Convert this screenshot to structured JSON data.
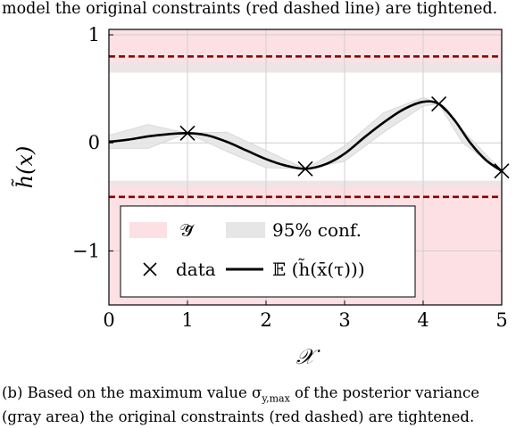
{
  "top_caption": "model the original constraints (red dashed line) are tightened.",
  "bottom_caption": {
    "line1": "(b) Based on the maximum value σ",
    "line1_sub": "y,max",
    "line1_rest": " of the posterior variance",
    "line2": "(gray area) the original constraints (red dashed) are tightened."
  },
  "chart_data": {
    "type": "line",
    "xlabel": "𝒳",
    "ylabel": "h̃(x)",
    "xlim": [
      0,
      5
    ],
    "ylim": [
      -1.5,
      1.05
    ],
    "xticks": [
      "0",
      "1",
      "2",
      "3",
      "4",
      "5"
    ],
    "yticks": [
      "1",
      "0",
      "−1"
    ],
    "grid": true,
    "constraints": {
      "upper": 0.8,
      "lower": -0.5
    },
    "tightened_region": {
      "upper_start": 0.65,
      "lower_end": -0.35
    },
    "series": [
      {
        "role": "mean",
        "x": [
          0,
          0.25,
          0.5,
          0.75,
          1.0,
          1.25,
          1.5,
          1.75,
          2.0,
          2.25,
          2.5,
          2.75,
          3.0,
          3.25,
          3.5,
          3.75,
          4.0,
          4.2,
          4.4,
          4.6,
          4.8,
          5.0
        ],
        "y": [
          0.01,
          0.03,
          0.06,
          0.08,
          0.09,
          0.07,
          0.01,
          -0.07,
          -0.15,
          -0.21,
          -0.24,
          -0.2,
          -0.1,
          0.05,
          0.19,
          0.31,
          0.38,
          0.36,
          0.21,
          0.0,
          -0.16,
          -0.26
        ]
      },
      {
        "role": "conf",
        "x": [
          0,
          0.5,
          1.0,
          1.5,
          2.0,
          2.5,
          3.0,
          3.5,
          4.0,
          4.2,
          4.5,
          5.0
        ],
        "upper": [
          0.07,
          0.17,
          0.09,
          0.1,
          -0.07,
          -0.24,
          -0.03,
          0.28,
          0.42,
          0.36,
          0.12,
          -0.26
        ],
        "lower": [
          -0.05,
          -0.05,
          0.09,
          -0.08,
          -0.23,
          -0.24,
          -0.17,
          0.1,
          0.34,
          0.36,
          0.0,
          -0.26
        ]
      }
    ],
    "data_points": {
      "x": [
        1.0,
        2.5,
        4.2,
        5.0
      ],
      "y": [
        0.09,
        -0.24,
        0.36,
        -0.26
      ]
    },
    "legend": {
      "entries": [
        "𝒴̃",
        "95% conf.",
        "data",
        "𝔼 (h̃(x̄(τ)))"
      ]
    },
    "colors": {
      "safe_fill": "#fde0e4",
      "conf_fill": "#e6e6e6",
      "constraint": "#8b0000",
      "mean": "#000000",
      "grid": "#cfcfcf"
    }
  }
}
